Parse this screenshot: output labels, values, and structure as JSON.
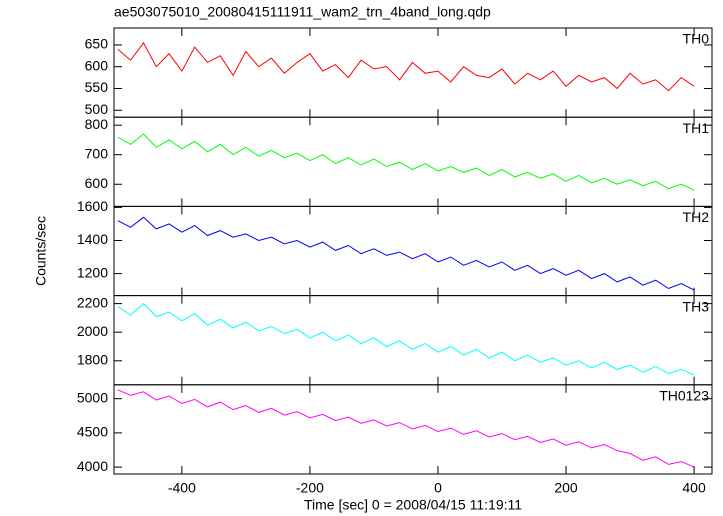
{
  "title": "ae503075010_20080415111911_wam2_trn_4band_long.qdp",
  "xlabel": "Time [sec] 0 = 2008/04/15 11:19:11",
  "ylabel": "Counts/sec",
  "xlim": [
    -506,
    428
  ],
  "xticks": [
    -400,
    -200,
    0,
    200,
    400
  ],
  "x": [
    -500,
    -480,
    -460,
    -440,
    -420,
    -400,
    -380,
    -360,
    -340,
    -320,
    -300,
    -280,
    -260,
    -240,
    -220,
    -200,
    -180,
    -160,
    -140,
    -120,
    -100,
    -80,
    -60,
    -40,
    -20,
    0,
    20,
    40,
    60,
    80,
    100,
    120,
    140,
    160,
    180,
    200,
    220,
    240,
    260,
    280,
    300,
    320,
    340,
    360,
    380,
    400
  ],
  "chart_data": [
    {
      "type": "line",
      "ylim": [
        484,
        689
      ],
      "yticks": [
        500,
        550,
        600,
        650
      ],
      "series": [
        {
          "name": "TH0",
          "color": "#ff0000",
          "values": [
            640,
            615,
            655,
            600,
            630,
            590,
            645,
            610,
            625,
            580,
            635,
            600,
            620,
            585,
            610,
            630,
            590,
            605,
            575,
            615,
            595,
            600,
            570,
            610,
            585,
            590,
            565,
            600,
            580,
            575,
            595,
            560,
            585,
            570,
            590,
            555,
            580,
            565,
            575,
            550,
            585,
            560,
            570,
            545,
            575,
            555
          ]
        }
      ]
    },
    {
      "type": "line",
      "ylim": [
        525,
        827
      ],
      "yticks": [
        600,
        700,
        800
      ],
      "series": [
        {
          "name": "TH1",
          "color": "#00ff00",
          "values": [
            760,
            735,
            770,
            725,
            750,
            720,
            745,
            710,
            735,
            700,
            725,
            695,
            715,
            690,
            705,
            680,
            700,
            670,
            690,
            665,
            685,
            660,
            675,
            650,
            670,
            645,
            660,
            640,
            655,
            630,
            650,
            625,
            640,
            620,
            635,
            610,
            630,
            605,
            620,
            600,
            615,
            595,
            610,
            585,
            600,
            580
          ]
        }
      ]
    },
    {
      "type": "line",
      "ylim": [
        1067,
        1606
      ],
      "yticks": [
        1200,
        1400,
        1600
      ],
      "series": [
        {
          "name": "TH2",
          "color": "#0000ff",
          "values": [
            1520,
            1480,
            1540,
            1470,
            1500,
            1450,
            1490,
            1430,
            1460,
            1420,
            1440,
            1400,
            1420,
            1380,
            1400,
            1360,
            1390,
            1340,
            1370,
            1320,
            1350,
            1310,
            1330,
            1290,
            1320,
            1270,
            1300,
            1250,
            1280,
            1240,
            1270,
            1220,
            1250,
            1200,
            1230,
            1190,
            1220,
            1170,
            1200,
            1150,
            1180,
            1130,
            1160,
            1110,
            1140,
            1100
          ]
        }
      ]
    },
    {
      "type": "line",
      "ylim": [
        1632,
        2256
      ],
      "yticks": [
        1800,
        2000,
        2200
      ],
      "series": [
        {
          "name": "TH3",
          "color": "#00ffff",
          "values": [
            2180,
            2120,
            2200,
            2110,
            2140,
            2080,
            2130,
            2050,
            2090,
            2030,
            2070,
            2010,
            2040,
            1990,
            2020,
            1960,
            2000,
            1940,
            1980,
            1920,
            1960,
            1900,
            1940,
            1880,
            1920,
            1860,
            1900,
            1840,
            1880,
            1820,
            1860,
            1800,
            1840,
            1790,
            1820,
            1770,
            1800,
            1750,
            1790,
            1740,
            1770,
            1720,
            1760,
            1710,
            1740,
            1700
          ]
        }
      ]
    },
    {
      "type": "line",
      "ylim": [
        3899,
        5203
      ],
      "yticks": [
        4000,
        4500,
        5000
      ],
      "series": [
        {
          "name": "TH0123",
          "color": "#ff00ff",
          "values": [
            5130,
            5050,
            5100,
            4980,
            5040,
            4930,
            4990,
            4880,
            4950,
            4840,
            4900,
            4800,
            4860,
            4760,
            4810,
            4720,
            4770,
            4680,
            4730,
            4640,
            4690,
            4600,
            4650,
            4560,
            4610,
            4520,
            4570,
            4480,
            4530,
            4440,
            4490,
            4400,
            4450,
            4360,
            4410,
            4320,
            4370,
            4280,
            4330,
            4240,
            4200,
            4100,
            4150,
            4040,
            4080,
            4000
          ]
        }
      ]
    }
  ]
}
